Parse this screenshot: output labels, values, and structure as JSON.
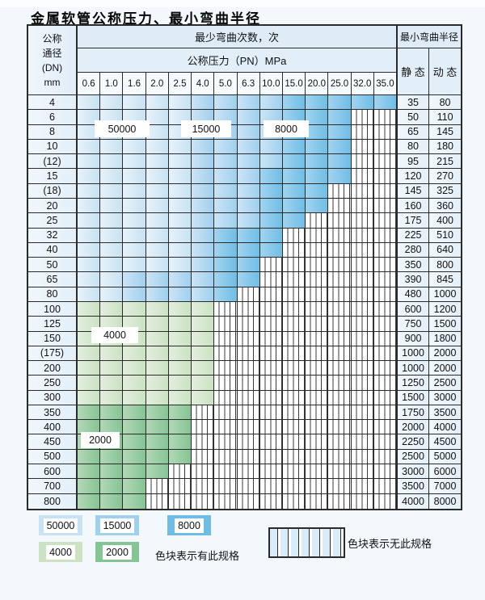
{
  "title": "金属软管公称压力、最小弯曲半径",
  "table": {
    "dn_header_lines": [
      "公称",
      "通径",
      "(DN)",
      "mm"
    ],
    "cycles_header": "最少弯曲次数，次",
    "pressure_header": "公称压力（PN）MPa",
    "pressure_columns": [
      "0.6",
      "1.0",
      "1.6",
      "2.0",
      "2.5",
      "4.0",
      "5.0",
      "6.3",
      "10.0",
      "15.0",
      "20.0",
      "25.0",
      "32.0",
      "35.0"
    ],
    "radius_header": "最小弯曲半径",
    "static_header": "静 态",
    "dynamic_header": "动 态",
    "zone_codes": {
      "a": "50000 cycles",
      "b": "15000 cycles",
      "c": "8000 cycles",
      "g": "4000 cycles",
      "h": "2000 cycles",
      "x": "no specification"
    },
    "rows": [
      {
        "dn": "4",
        "cells": "aaaaabbbbccccc",
        "static": "35",
        "dynamic": "80"
      },
      {
        "dn": "6",
        "cells": "aaaaabbbbcccxx",
        "static": "50",
        "dynamic": "110"
      },
      {
        "dn": "8",
        "cells": "aaaaabbbbcccxx",
        "static": "65",
        "dynamic": "145"
      },
      {
        "dn": "10",
        "cells": "aaaaabbbbcccxx",
        "static": "80",
        "dynamic": "180"
      },
      {
        "dn": "(12)",
        "cells": "aaaaabbbbcccxx",
        "static": "95",
        "dynamic": "215"
      },
      {
        "dn": "15",
        "cells": "aaaaabbbccccxx",
        "static": "120",
        "dynamic": "270"
      },
      {
        "dn": "(18)",
        "cells": "aaaaabbbcccxxx",
        "static": "145",
        "dynamic": "325"
      },
      {
        "dn": "20",
        "cells": "aaaaabbbcccxxx",
        "static": "160",
        "dynamic": "360"
      },
      {
        "dn": "25",
        "cells": "aaaaabbbccxxxx",
        "static": "175",
        "dynamic": "400"
      },
      {
        "dn": "32",
        "cells": "aaaaabcccxxxxx",
        "static": "225",
        "dynamic": "510"
      },
      {
        "dn": "40",
        "cells": "aaaaabcccxxxxx",
        "static": "280",
        "dynamic": "640"
      },
      {
        "dn": "50",
        "cells": "aaaaabccxxxxxx",
        "static": "350",
        "dynamic": "800"
      },
      {
        "dn": "65",
        "cells": "aabbbbccxxxxxx",
        "static": "390",
        "dynamic": "845"
      },
      {
        "dn": "80",
        "cells": "aabbbbcxxxxxxx",
        "static": "480",
        "dynamic": "1000"
      },
      {
        "dn": "100",
        "cells": "ggggggxxxxxxxx",
        "static": "600",
        "dynamic": "1200"
      },
      {
        "dn": "125",
        "cells": "ggggggxxxxxxxx",
        "static": "750",
        "dynamic": "1500"
      },
      {
        "dn": "150",
        "cells": "ggggggxxxxxxxx",
        "static": "900",
        "dynamic": "1800"
      },
      {
        "dn": "(175)",
        "cells": "ggggggxxxxxxxx",
        "static": "1000",
        "dynamic": "2000"
      },
      {
        "dn": "200",
        "cells": "ggggggxxxxxxxx",
        "static": "1000",
        "dynamic": "2000"
      },
      {
        "dn": "250",
        "cells": "ggggggxxxxxxxx",
        "static": "1250",
        "dynamic": "2500"
      },
      {
        "dn": "300",
        "cells": "ggggggxxxxxxxx",
        "static": "1500",
        "dynamic": "3000"
      },
      {
        "dn": "350",
        "cells": "hhhhhxxxxxxxxx",
        "static": "1750",
        "dynamic": "3500"
      },
      {
        "dn": "400",
        "cells": "hhhhhxxxxxxxxx",
        "static": "2000",
        "dynamic": "4000"
      },
      {
        "dn": "450",
        "cells": "hhhhhxxxxxxxxx",
        "static": "2250",
        "dynamic": "4500"
      },
      {
        "dn": "500",
        "cells": "hhhhhxxxxxxxxx",
        "static": "2500",
        "dynamic": "5000"
      },
      {
        "dn": "600",
        "cells": "hhhhxxxxxxxxxx",
        "static": "3000",
        "dynamic": "6000"
      },
      {
        "dn": "700",
        "cells": "hhhxxxxxxxxxxx",
        "static": "3500",
        "dynamic": "7000"
      },
      {
        "dn": "800",
        "cells": "hhhxxxxxxxxxxx",
        "static": "4000",
        "dynamic": "8000"
      }
    ]
  },
  "zone_overlays": [
    {
      "text": "50000"
    },
    {
      "text": "15000"
    },
    {
      "text": "8000"
    },
    {
      "text": "4000"
    },
    {
      "text": "2000"
    }
  ],
  "legend": {
    "items": [
      {
        "label": "50000"
      },
      {
        "label": "15000"
      },
      {
        "label": "8000"
      },
      {
        "label": "4000"
      },
      {
        "label": "2000"
      }
    ],
    "has_spec_text": "色块表示有此规格",
    "no_spec_text": "色块表示无此规格"
  },
  "colors": {
    "grid": "#2b2b2b",
    "zones": {
      "b1": [
        "#e7f2fa",
        "#c7e2f3"
      ],
      "b2": [
        "#cbe4f5",
        "#a0d0ee"
      ],
      "b3": [
        "#a2d4ef",
        "#6fbde6"
      ],
      "g1": [
        "#e3eedd",
        "#cbe2c3"
      ],
      "g2": [
        "#b2d8b6",
        "#85c494"
      ]
    }
  }
}
